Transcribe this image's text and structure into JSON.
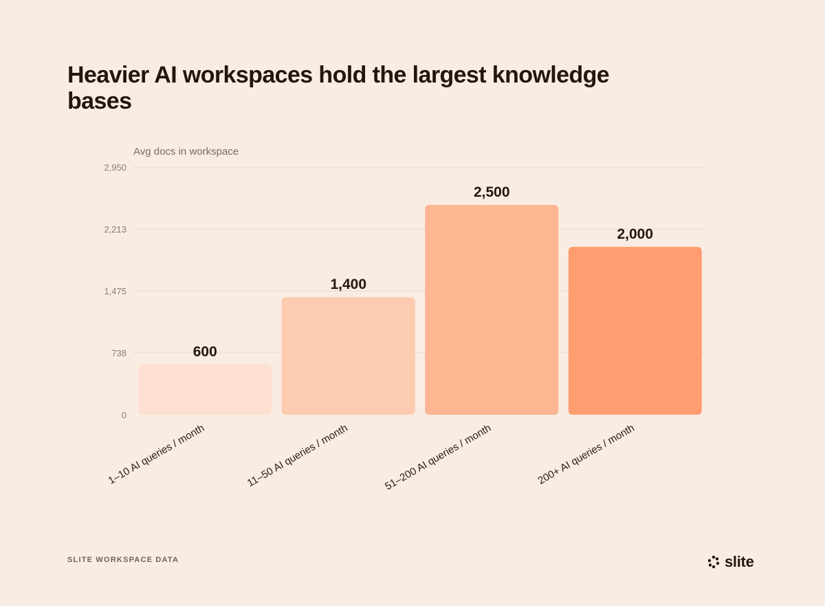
{
  "title": "Heavier AI workspaces hold the largest knowledge bases",
  "footer": {
    "source": "SLITE WORKSPACE DATA",
    "brand": "slite"
  },
  "colors": {
    "background": "#f9ede3",
    "gridline": "#efe2d7",
    "bars": [
      "#fde0d2",
      "#fccbb0",
      "#fdb592",
      "#ff9d70"
    ]
  },
  "chart_data": {
    "type": "bar",
    "ylabel": "Avg docs in workspace",
    "xlabel": "",
    "categories": [
      "1–10 AI queries / month",
      "11–50 AI queries / month",
      "51–200 AI queries / month",
      "200+ AI queries / month"
    ],
    "values": [
      600,
      1400,
      2500,
      2000
    ],
    "value_labels": [
      "600",
      "1,400",
      "2,500",
      "2,000"
    ],
    "yticks": [
      0,
      738,
      1475,
      2213,
      2950
    ],
    "ytick_labels": [
      "0",
      "738",
      "1,475",
      "2,213",
      "2,950"
    ],
    "ylim": [
      0,
      2950
    ],
    "grid": true,
    "legend": "none"
  }
}
